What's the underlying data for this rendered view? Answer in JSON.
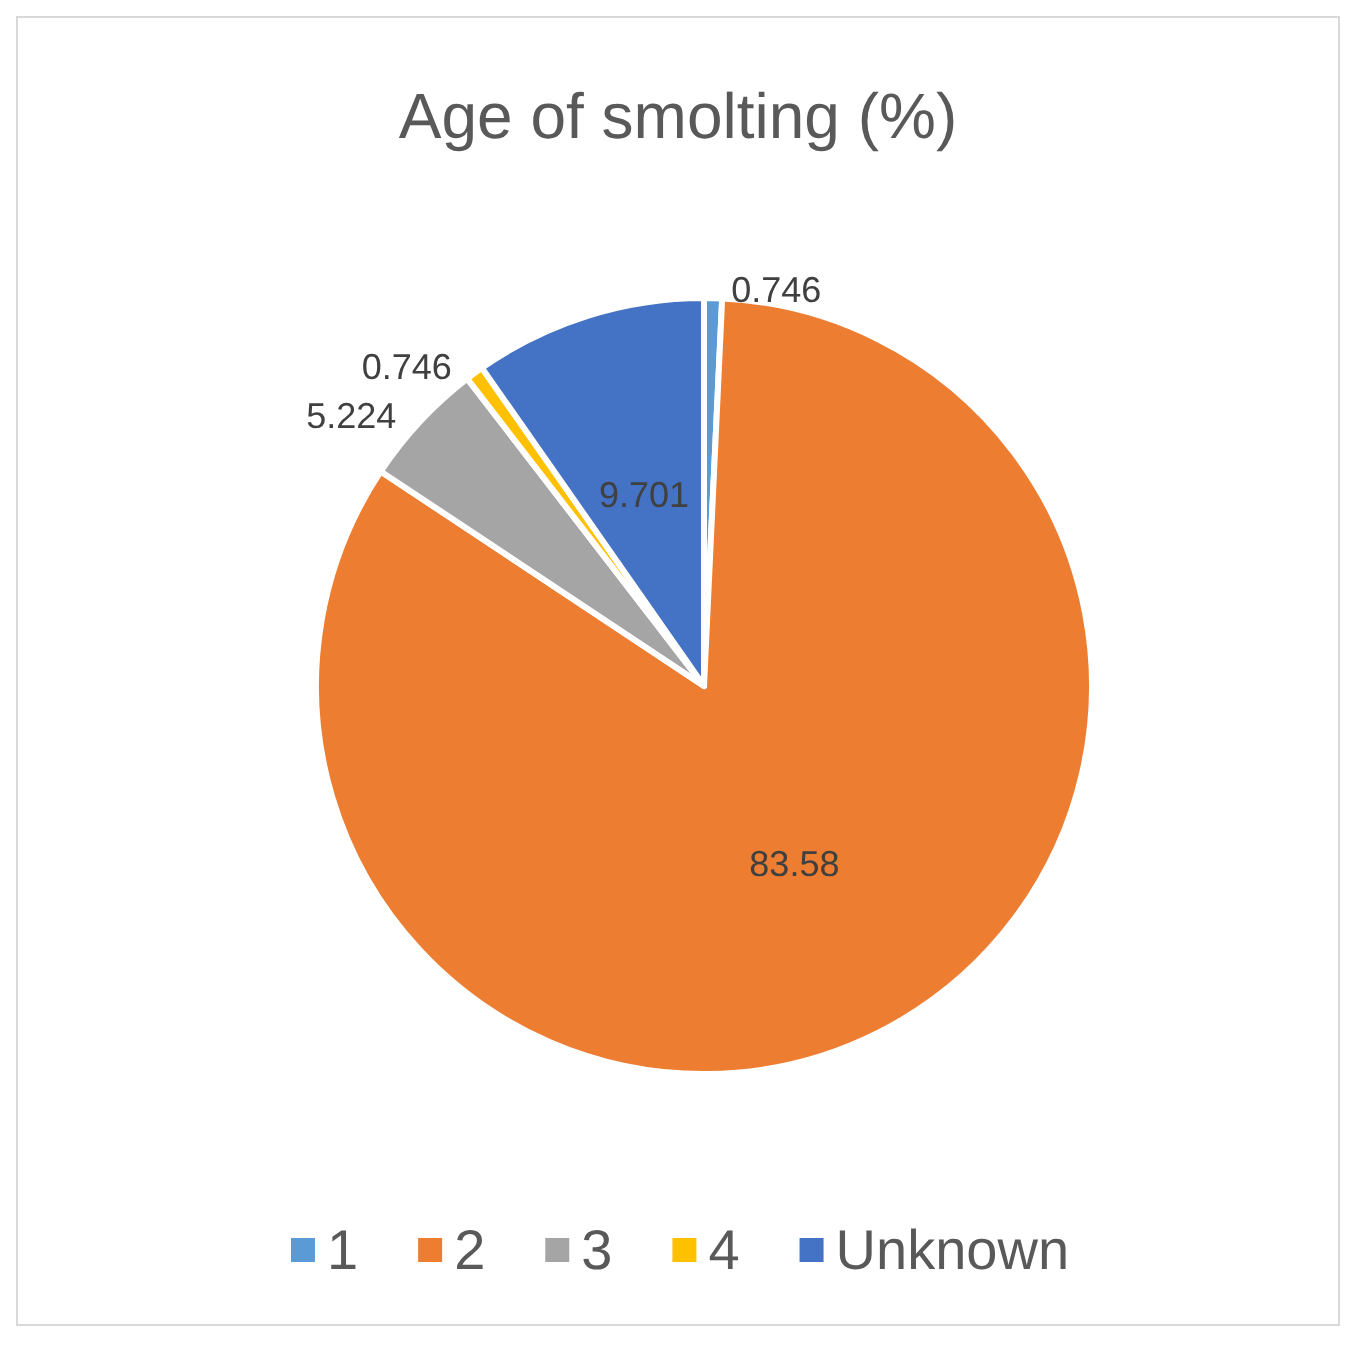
{
  "chart_data": {
    "type": "pie",
    "title": "Age of smolting (%)",
    "categories": [
      "1",
      "2",
      "3",
      "4",
      "Unknown"
    ],
    "values": [
      0.746,
      83.58,
      5.224,
      0.746,
      9.701
    ],
    "colors": [
      "#5b9bd5",
      "#ed7d31",
      "#a5a5a5",
      "#ffc000",
      "#4472c4"
    ],
    "data_labels": true,
    "legend": "bottom"
  }
}
